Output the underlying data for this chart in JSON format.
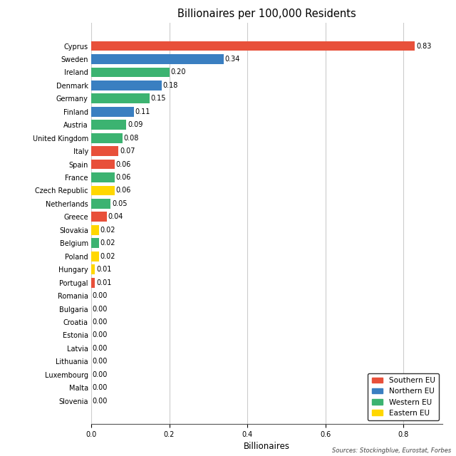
{
  "title": "Billionaires per 100,000 Residents",
  "xlabel": "Billionaires",
  "source_text": "Sources: Stockingblue, Eurostat, Forbes",
  "countries": [
    "Cyprus",
    "Sweden",
    "Ireland",
    "Denmark",
    "Germany",
    "Finland",
    "Austria",
    "United Kingdom",
    "Italy",
    "Spain",
    "France",
    "Czech Republic",
    "Netherlands",
    "Greece",
    "Slovakia",
    "Belgium",
    "Poland",
    "Hungary",
    "Portugal",
    "Romania",
    "Bulgaria",
    "Croatia",
    "Estonia",
    "Latvia",
    "Lithuania",
    "Luxembourg",
    "Malta",
    "Slovenia"
  ],
  "values": [
    0.83,
    0.34,
    0.2,
    0.18,
    0.15,
    0.11,
    0.09,
    0.08,
    0.07,
    0.06,
    0.06,
    0.06,
    0.05,
    0.04,
    0.02,
    0.02,
    0.02,
    0.01,
    0.01,
    0.0,
    0.0,
    0.0,
    0.0,
    0.0,
    0.0,
    0.0,
    0.0,
    0.0
  ],
  "regions": [
    "Southern EU",
    "Northern EU",
    "Western EU",
    "Northern EU",
    "Western EU",
    "Northern EU",
    "Western EU",
    "Western EU",
    "Southern EU",
    "Southern EU",
    "Western EU",
    "Eastern EU",
    "Western EU",
    "Southern EU",
    "Eastern EU",
    "Western EU",
    "Eastern EU",
    "Eastern EU",
    "Southern EU",
    "Eastern EU",
    "Eastern EU",
    "Eastern EU",
    "Northern EU",
    "Northern EU",
    "Northern EU",
    "Western EU",
    "Southern EU",
    "Eastern EU"
  ],
  "region_colors": {
    "Southern EU": "#E8503A",
    "Northern EU": "#3A7FC1",
    "Western EU": "#3CB371",
    "Eastern EU": "#FFD700"
  },
  "legend_order": [
    "Southern EU",
    "Northern EU",
    "Western EU",
    "Eastern EU"
  ],
  "xlim": [
    0,
    0.9
  ],
  "xticks": [
    0.0,
    0.2,
    0.4,
    0.6,
    0.8
  ],
  "background_color": "#FFFFFF",
  "grid_color": "#CCCCCC",
  "bar_height": 0.75,
  "label_fontsize": 7.0,
  "tick_fontsize": 7.0,
  "title_fontsize": 10.5,
  "xlabel_fontsize": 8.5
}
